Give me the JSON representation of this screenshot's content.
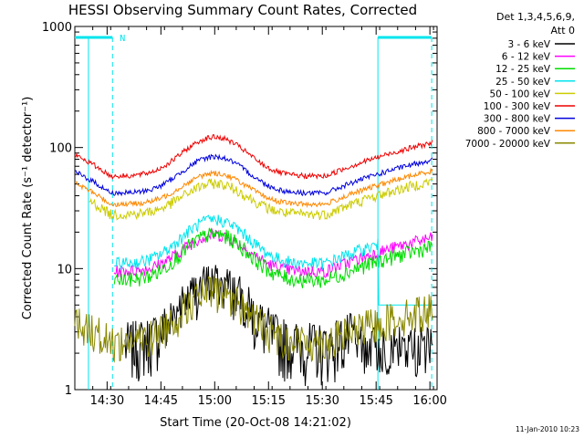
{
  "chart_data": {
    "type": "line",
    "title": "HESSI Observing Summary Count Rates, Corrected",
    "ylabel": "Corrected Count Rate (s⁻¹ detector⁻¹)",
    "xlabel": "Start Time (20-Oct-08 14:21:02)",
    "yscale": "log",
    "ylim": [
      1,
      1000
    ],
    "xlim_minutes_since_1421": [
      0,
      101
    ],
    "y_ticks": [
      "1",
      "10",
      "100",
      "1000"
    ],
    "x_ticks": [
      {
        "label": "14:30",
        "min": 9
      },
      {
        "label": "14:45",
        "min": 24
      },
      {
        "label": "15:00",
        "min": 39
      },
      {
        "label": "15:15",
        "min": 54
      },
      {
        "label": "15:30",
        "min": 69
      },
      {
        "label": "15:45",
        "min": 84
      },
      {
        "label": "16:00",
        "min": 99
      }
    ],
    "legend_header": [
      "Det 1,3,4,5,6,9,",
      "Att 0"
    ],
    "legend_position": "right",
    "series": [
      {
        "name": "3 - 6 keV",
        "color": "#000000",
        "level": "min-level"
      },
      {
        "name": "6 - 12 keV",
        "color": "#ff00ff",
        "level": 9.5
      },
      {
        "name": "12 - 25 keV",
        "color": "#00dd00",
        "level": 8
      },
      {
        "name": "25 - 50 keV",
        "color": "#00e5ee",
        "level": 11
      },
      {
        "name": "50 - 100 keV",
        "color": "#cccc00",
        "level": 28
      },
      {
        "name": "100 - 300 keV",
        "color": "#ee0000",
        "level": 58
      },
      {
        "name": "300 - 800 keV",
        "color": "#0000dd",
        "level": 42
      },
      {
        "name": "800 - 7000 keV",
        "color": "#ff8800",
        "level": 34
      },
      {
        "name": "7000 - 20000 keV",
        "color": "#888800",
        "level": 2.5
      }
    ],
    "flags": [
      {
        "label": "N",
        "color": "#00e5ee"
      }
    ],
    "footer": "11-Jan-2010 10:23"
  }
}
